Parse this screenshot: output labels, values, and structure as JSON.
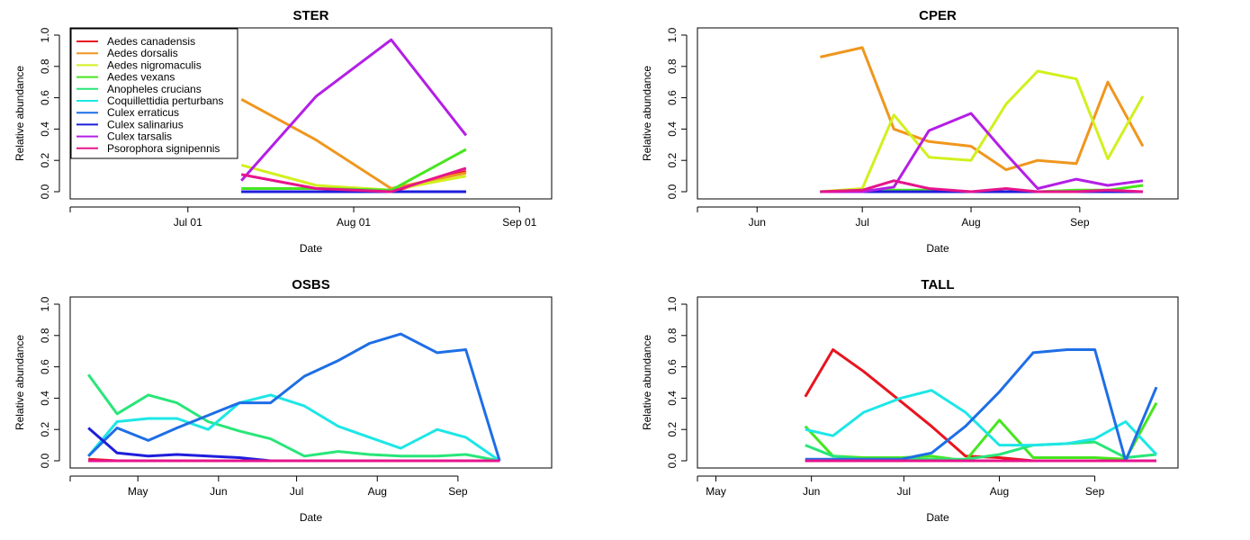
{
  "legend": {
    "entries": [
      {
        "name": "Aedes canadensis",
        "color": "#E8141E"
      },
      {
        "name": "Aedes dorsalis",
        "color": "#F0961E"
      },
      {
        "name": "Aedes nigromaculis",
        "color": "#D2F01E"
      },
      {
        "name": "Aedes vexans",
        "color": "#46E61E"
      },
      {
        "name": "Anopheles crucians",
        "color": "#28E678"
      },
      {
        "name": "Coquillettidia perturbans",
        "color": "#1EE6E6"
      },
      {
        "name": "Culex erraticus",
        "color": "#1E6EE6"
      },
      {
        "name": "Culex salinarius",
        "color": "#1E1EDC"
      },
      {
        "name": "Culex tarsalis",
        "color": "#B41EE6"
      },
      {
        "name": "Psorophora signipennis",
        "color": "#E6148C"
      }
    ]
  },
  "chart_data": [
    {
      "type": "line",
      "title": "STER",
      "xlabel": "Date",
      "ylabel": "Relative abundance",
      "x_range_days": [
        160,
        250
      ],
      "ylim": [
        0,
        1
      ],
      "x_ticks": [
        {
          "label": "Jul 01",
          "day": 182
        },
        {
          "label": "Aug 01",
          "day": 213
        },
        {
          "label": "Sep 01",
          "day": 244
        }
      ],
      "y_ticks": [
        "0.0",
        "0.2",
        "0.4",
        "0.6",
        "0.8",
        "1.0"
      ],
      "grid": false,
      "legend_position": "top-left",
      "x": [
        192,
        206,
        220,
        234
      ],
      "series": [
        {
          "name": "Aedes canadensis",
          "values": [
            0,
            0,
            0,
            0.13
          ]
        },
        {
          "name": "Aedes dorsalis",
          "values": [
            0.59,
            0.33,
            0.02,
            0.12
          ]
        },
        {
          "name": "Aedes nigromaculis",
          "values": [
            0.17,
            0.04,
            0.01,
            0.1
          ]
        },
        {
          "name": "Aedes vexans",
          "values": [
            0.02,
            0.02,
            0.01,
            0.27
          ]
        },
        {
          "name": "Anopheles crucians",
          "values": [
            0,
            0,
            0,
            0
          ]
        },
        {
          "name": "Coquillettidia perturbans",
          "values": [
            0,
            0,
            0,
            0
          ]
        },
        {
          "name": "Culex erraticus",
          "values": [
            0,
            0,
            0,
            0
          ]
        },
        {
          "name": "Culex salinarius",
          "values": [
            0,
            0,
            0,
            0
          ]
        },
        {
          "name": "Culex tarsalis",
          "values": [
            0.07,
            0.61,
            0.97,
            0.36
          ]
        },
        {
          "name": "Psorophora signipennis",
          "values": [
            0.11,
            0.02,
            0,
            0.15
          ]
        }
      ]
    },
    {
      "type": "line",
      "title": "CPER",
      "xlabel": "Date",
      "ylabel": "Relative abundance",
      "x_range_days": [
        135,
        272
      ],
      "ylim": [
        0,
        1
      ],
      "x_ticks": [
        {
          "label": "Jun",
          "day": 152
        },
        {
          "label": "Jul",
          "day": 182
        },
        {
          "label": "Aug",
          "day": 213
        },
        {
          "label": "Sep",
          "day": 244
        }
      ],
      "y_ticks": [
        "0.0",
        "0.2",
        "0.4",
        "0.6",
        "0.8",
        "1.0"
      ],
      "grid": false,
      "x": [
        170,
        182,
        191,
        201,
        213,
        223,
        232,
        243,
        252,
        262
      ],
      "series": [
        {
          "name": "Aedes canadensis",
          "values": [
            0,
            0,
            0,
            0,
            0,
            0,
            0,
            0,
            0,
            0
          ]
        },
        {
          "name": "Aedes dorsalis",
          "values": [
            0.86,
            0.92,
            0.4,
            0.32,
            0.29,
            0.14,
            0.2,
            0.18,
            0.7,
            0.29
          ]
        },
        {
          "name": "Aedes nigromaculis",
          "values": [
            0,
            0.02,
            0.49,
            0.22,
            0.2,
            0.56,
            0.77,
            0.72,
            0.21,
            0.61
          ]
        },
        {
          "name": "Aedes vexans",
          "values": [
            0,
            0.01,
            0.01,
            0.01,
            0,
            0,
            0,
            0.01,
            0.01,
            0.04
          ]
        },
        {
          "name": "Anopheles crucians",
          "values": [
            0,
            0,
            0,
            0,
            0,
            0,
            0,
            0,
            0,
            0
          ]
        },
        {
          "name": "Coquillettidia perturbans",
          "values": [
            0,
            0,
            0,
            0,
            0,
            0,
            0,
            0,
            0,
            0
          ]
        },
        {
          "name": "Culex erraticus",
          "values": [
            0,
            0,
            0,
            0,
            0,
            0,
            0,
            0,
            0,
            0
          ]
        },
        {
          "name": "Culex salinarius",
          "values": [
            0,
            0,
            0,
            0,
            0,
            0,
            0,
            0,
            0,
            0
          ]
        },
        {
          "name": "Culex tarsalis",
          "values": [
            0,
            0,
            0.03,
            0.39,
            0.5,
            0.24,
            0.02,
            0.08,
            0.04,
            0.07
          ]
        },
        {
          "name": "Psorophora signipennis",
          "values": [
            0,
            0.01,
            0.07,
            0.02,
            0,
            0.02,
            0,
            0,
            0.01,
            0
          ]
        }
      ]
    },
    {
      "type": "line",
      "title": "OSBS",
      "xlabel": "Date",
      "ylabel": "Relative abundance",
      "x_range_days": [
        95,
        280
      ],
      "ylim": [
        0,
        1
      ],
      "x_ticks": [
        {
          "label": "May",
          "day": 121
        },
        {
          "label": "Jun",
          "day": 152
        },
        {
          "label": "Jul",
          "day": 182
        },
        {
          "label": "Aug",
          "day": 213
        },
        {
          "label": "Sep",
          "day": 244
        }
      ],
      "y_ticks": [
        "0.0",
        "0.2",
        "0.4",
        "0.6",
        "0.8",
        "1.0"
      ],
      "grid": false,
      "x": [
        102,
        113,
        125,
        136,
        148,
        160,
        172,
        185,
        198,
        210,
        222,
        236,
        247,
        260
      ],
      "series": [
        {
          "name": "Aedes canadensis",
          "values": [
            0.01,
            0,
            0,
            0,
            0,
            0,
            0,
            0,
            0,
            0,
            0,
            0,
            0,
            0
          ]
        },
        {
          "name": "Aedes dorsalis",
          "values": [
            0,
            0,
            0,
            0,
            0,
            0,
            0,
            0,
            0,
            0,
            0,
            0,
            0,
            0
          ]
        },
        {
          "name": "Aedes nigromaculis",
          "values": [
            0,
            0,
            0,
            0,
            0,
            0,
            0,
            0,
            0,
            0,
            0,
            0,
            0,
            0
          ]
        },
        {
          "name": "Aedes vexans",
          "values": [
            0,
            0,
            0,
            0,
            0,
            0,
            0,
            0,
            0,
            0,
            0,
            0,
            0,
            0
          ]
        },
        {
          "name": "Anopheles crucians",
          "values": [
            0.55,
            0.3,
            0.42,
            0.37,
            0.25,
            0.19,
            0.14,
            0.03,
            0.06,
            0.04,
            0.03,
            0.03,
            0.04,
            0
          ]
        },
        {
          "name": "Coquillettidia perturbans",
          "values": [
            0.03,
            0.25,
            0.27,
            0.27,
            0.2,
            0.37,
            0.42,
            0.35,
            0.22,
            0.15,
            0.08,
            0.2,
            0.15,
            0
          ]
        },
        {
          "name": "Culex erraticus",
          "values": [
            0.03,
            0.21,
            0.13,
            0.21,
            0.29,
            0.37,
            0.37,
            0.54,
            0.64,
            0.75,
            0.81,
            0.69,
            0.71,
            0
          ]
        },
        {
          "name": "Culex salinarius",
          "values": [
            0.21,
            0.05,
            0.03,
            0.04,
            0.03,
            0.02,
            0,
            0,
            0,
            0,
            0,
            0,
            0,
            0
          ]
        },
        {
          "name": "Culex tarsalis",
          "values": [
            0,
            0,
            0,
            0,
            0,
            0,
            0,
            0,
            0,
            0,
            0,
            0,
            0,
            0
          ]
        },
        {
          "name": "Psorophora signipennis",
          "values": [
            0,
            0,
            0,
            0,
            0,
            0,
            0,
            0,
            0,
            0,
            0,
            0,
            0,
            0
          ]
        }
      ]
    },
    {
      "type": "line",
      "title": "TALL",
      "xlabel": "Date",
      "ylabel": "Relative abundance",
      "x_range_days": [
        115,
        271
      ],
      "ylim": [
        0,
        1
      ],
      "x_ticks": [
        {
          "label": "May",
          "day": 121
        },
        {
          "label": "Jun",
          "day": 152
        },
        {
          "label": "Jul",
          "day": 182
        },
        {
          "label": "Aug",
          "day": 213
        },
        {
          "label": "Sep",
          "day": 244
        }
      ],
      "y_ticks": [
        "0.0",
        "0.2",
        "0.4",
        "0.6",
        "0.8",
        "1.0"
      ],
      "grid": false,
      "x": [
        150,
        159,
        169,
        181,
        191,
        202,
        213,
        224,
        235,
        244,
        254,
        264
      ],
      "series": [
        {
          "name": "Aedes canadensis",
          "values": [
            0.41,
            0.71,
            0.57,
            0.38,
            0.22,
            0.03,
            0.02,
            0,
            0,
            0,
            0,
            0
          ]
        },
        {
          "name": "Aedes dorsalis",
          "values": [
            0,
            0,
            0,
            0,
            0,
            0,
            0,
            0,
            0,
            0,
            0,
            0
          ]
        },
        {
          "name": "Aedes nigromaculis",
          "values": [
            0,
            0,
            0,
            0,
            0,
            0,
            0,
            0,
            0,
            0,
            0,
            0
          ]
        },
        {
          "name": "Aedes vexans",
          "values": [
            0.22,
            0.03,
            0.02,
            0.02,
            0.03,
            0,
            0.26,
            0.02,
            0.02,
            0.02,
            0.01,
            0.37
          ]
        },
        {
          "name": "Anopheles crucians",
          "values": [
            0.1,
            0.03,
            0.01,
            0.01,
            0.01,
            0.01,
            0.04,
            0.1,
            0.11,
            0.12,
            0.02,
            0.04
          ]
        },
        {
          "name": "Coquillettidia perturbans",
          "values": [
            0.2,
            0.16,
            0.31,
            0.4,
            0.45,
            0.31,
            0.1,
            0.1,
            0.11,
            0.14,
            0.25,
            0.04
          ]
        },
        {
          "name": "Culex erraticus",
          "values": [
            0.01,
            0.01,
            0.01,
            0.01,
            0.05,
            0.22,
            0.44,
            0.69,
            0.71,
            0.71,
            0,
            0.47
          ]
        },
        {
          "name": "Culex salinarius",
          "values": [
            0,
            0,
            0,
            0,
            0,
            0,
            0,
            0,
            0,
            0,
            0,
            0
          ]
        },
        {
          "name": "Culex tarsalis",
          "values": [
            0,
            0,
            0,
            0,
            0,
            0,
            0,
            0,
            0,
            0,
            0,
            0
          ]
        },
        {
          "name": "Psorophora signipennis",
          "values": [
            0,
            0,
            0,
            0,
            0,
            0,
            0,
            0,
            0,
            0,
            0,
            0
          ]
        }
      ]
    }
  ]
}
